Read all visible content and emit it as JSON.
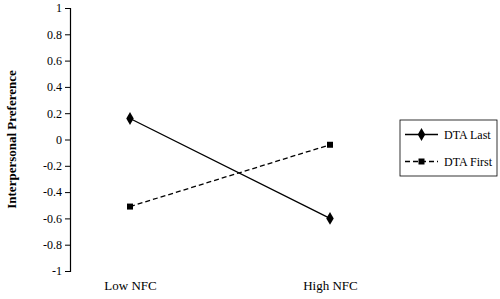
{
  "chart_data": {
    "type": "line",
    "y_label": "Interpersonal Preference",
    "categories": [
      "Low NFC",
      "High NFC"
    ],
    "series": [
      {
        "name": "DTA Last",
        "color": "#000000",
        "marker": "diamond",
        "line_style": "solid",
        "values": [
          0.16,
          -0.6
        ]
      },
      {
        "name": "DTA First",
        "color": "#000000",
        "marker": "square",
        "line_style": "dashed",
        "values": [
          -0.51,
          -0.04
        ]
      }
    ],
    "ylim": [
      -1,
      1
    ],
    "yticks": [
      -1,
      -0.8,
      -0.6,
      -0.4,
      -0.2,
      0,
      0.2,
      0.4,
      0.6,
      0.8,
      1
    ],
    "grid": false,
    "legend": "right"
  }
}
